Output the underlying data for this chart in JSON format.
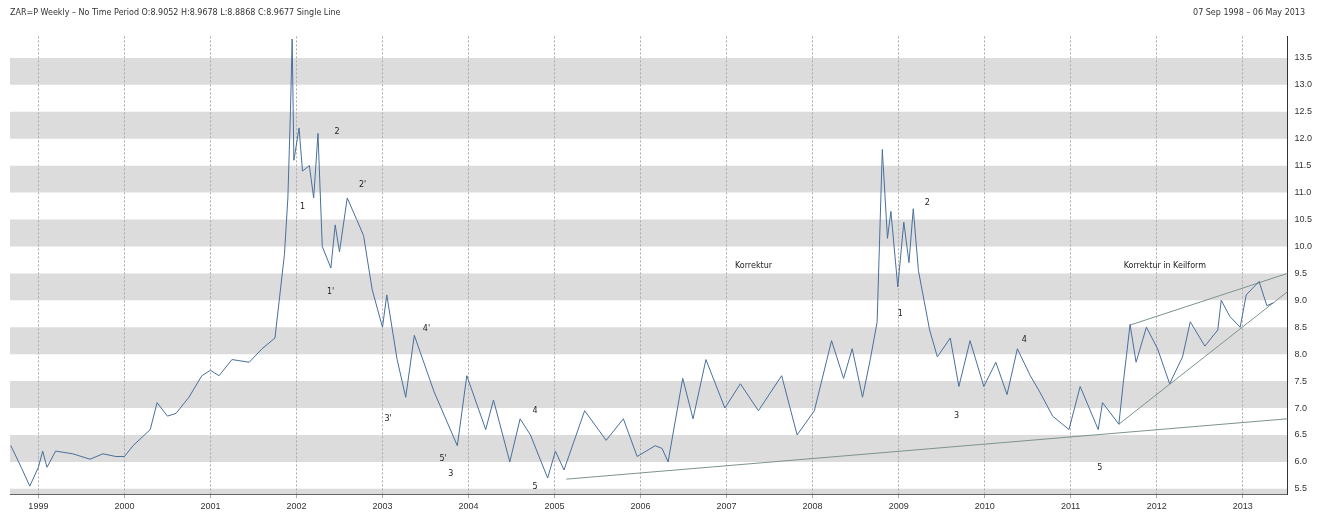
{
  "chart_data": {
    "type": "line",
    "title": "ZAR=P Weekly –  No Time Period O:8.9052 H:8.9678 L:8.8868 C:8.9677 Single Line",
    "subtitle": "07 Sep 1998  –  06 May 2013",
    "xlim": [
      1998.67,
      2013.52
    ],
    "xticks": [
      1999,
      2000,
      2001,
      2002,
      2003,
      2004,
      2005,
      2006,
      2007,
      2008,
      2009,
      2010,
      2011,
      2012,
      2013
    ],
    "ylim": [
      5.4,
      13.9
    ],
    "yticks": [
      5.5,
      {
        "value": 6,
        "label": "6.0"
      },
      6.5,
      {
        "value": 7,
        "label": "7.0"
      },
      7.5,
      {
        "value": 8,
        "label": "8.0"
      },
      8.5,
      {
        "value": 9,
        "label": "9.0"
      },
      9.5,
      {
        "value": 10,
        "label": "10.0"
      },
      10.5,
      {
        "value": 11,
        "label": "11.0"
      },
      11.5,
      {
        "value": 12,
        "label": "12.0"
      },
      12.5,
      {
        "value": 13,
        "label": "13.0"
      },
      13.5
    ],
    "grid": "x",
    "legend": false,
    "marker": "none",
    "line_style": "solid",
    "bands": [
      {
        "axis": "y",
        "from": 5.4,
        "to": 5.5,
        "color": "#dcdcdc"
      },
      {
        "axis": "y",
        "from": 6,
        "to": 6.5,
        "color": "#dcdcdc"
      },
      {
        "axis": "y",
        "from": 7,
        "to": 7.5,
        "color": "#dcdcdc"
      },
      {
        "axis": "y",
        "from": 8,
        "to": 8.5,
        "color": "#dcdcdc"
      },
      {
        "axis": "y",
        "from": 9,
        "to": 9.5,
        "color": "#dcdcdc"
      },
      {
        "axis": "y",
        "from": 10,
        "to": 10.5,
        "color": "#dcdcdc"
      },
      {
        "axis": "y",
        "from": 11,
        "to": 11.5,
        "color": "#dcdcdc"
      },
      {
        "axis": "y",
        "from": 12,
        "to": 12.5,
        "color": "#dcdcdc"
      },
      {
        "axis": "y",
        "from": 13,
        "to": 13.5,
        "color": "#dcdcdc"
      }
    ],
    "series": [
      {
        "color": "#4a6f9c",
        "x": [
          1998.68,
          1998.8,
          1998.9,
          1999.0,
          1999.05,
          1999.1,
          1999.2,
          1999.4,
          1999.6,
          1999.75,
          1999.9,
          2000.0,
          2000.1,
          2000.3,
          2000.38,
          2000.5,
          2000.6,
          2000.75,
          2000.9,
          2001.0,
          2001.1,
          2001.25,
          2001.45,
          2001.6,
          2001.75,
          2001.86,
          2001.9,
          2001.93,
          2001.95,
          2001.97,
          2002.03,
          2002.07,
          2002.15,
          2002.2,
          2002.25,
          2002.3,
          2002.4,
          2002.45,
          2002.5,
          2002.59,
          2002.7,
          2002.78,
          2002.88,
          2003.0,
          2003.05,
          2003.17,
          2003.27,
          2003.37,
          2003.6,
          2003.87,
          2003.98,
          2004.2,
          2004.29,
          2004.48,
          2004.6,
          2004.72,
          2004.92,
          2005.01,
          2005.11,
          2005.35,
          2005.6,
          2005.8,
          2005.96,
          2006.17,
          2006.25,
          2006.32,
          2006.49,
          2006.61,
          2006.76,
          2006.98,
          2007.16,
          2007.37,
          2007.64,
          2007.82,
          2008.02,
          2008.22,
          2008.36,
          2008.46,
          2008.58,
          2008.67,
          2008.75,
          2008.81,
          2008.87,
          2008.91,
          2008.99,
          2009.06,
          2009.12,
          2009.17,
          2009.23,
          2009.36,
          2009.45,
          2009.6,
          2009.7,
          2009.83,
          2009.99,
          2010.13,
          2010.26,
          2010.38,
          2010.53,
          2010.64,
          2010.79,
          2010.98,
          2011.11,
          2011.32,
          2011.37,
          2011.56,
          2011.61,
          2011.69,
          2011.76,
          2011.88,
          2012.01,
          2012.15,
          2012.3,
          2012.39,
          2012.56,
          2012.71,
          2012.75,
          2012.85,
          2012.97,
          2013.04,
          2013.19,
          2013.28,
          2013.35
        ],
        "values": [
          6.3,
          5.9,
          5.55,
          5.9,
          6.2,
          5.9,
          6.2,
          6.15,
          6.05,
          6.15,
          6.1,
          6.1,
          6.3,
          6.6,
          7.1,
          6.85,
          6.9,
          7.2,
          7.6,
          7.7,
          7.6,
          7.9,
          7.85,
          8.1,
          8.3,
          9.85,
          10.9,
          12.5,
          13.85,
          11.6,
          12.2,
          11.4,
          11.5,
          10.9,
          12.1,
          10.0,
          9.6,
          10.4,
          9.9,
          10.9,
          10.5,
          10.2,
          9.2,
          8.5,
          9.1,
          7.9,
          7.2,
          8.35,
          7.3,
          6.3,
          7.6,
          6.6,
          7.15,
          6.0,
          6.8,
          6.5,
          5.7,
          6.2,
          5.85,
          6.95,
          6.4,
          6.8,
          6.1,
          6.3,
          6.25,
          6.0,
          7.55,
          6.8,
          7.9,
          7.0,
          7.45,
          6.95,
          7.6,
          6.5,
          6.95,
          8.25,
          7.55,
          8.1,
          7.2,
          7.9,
          8.6,
          11.8,
          10.15,
          10.65,
          9.25,
          10.45,
          9.7,
          10.7,
          9.55,
          8.45,
          7.95,
          8.3,
          7.4,
          8.25,
          7.4,
          7.85,
          7.25,
          8.1,
          7.6,
          7.3,
          6.85,
          6.6,
          7.4,
          6.6,
          7.1,
          6.7,
          7.45,
          8.55,
          7.85,
          8.5,
          8.1,
          7.45,
          7.95,
          8.6,
          8.15,
          8.45,
          9.0,
          8.7,
          8.5,
          9.1,
          9.35,
          8.9,
          8.95
        ]
      },
      {
        "color": "#7d9488",
        "x": [
          2005.14,
          2013.52
        ],
        "values": [
          5.68,
          6.8
        ]
      },
      {
        "color": "#7d9488",
        "x": [
          2011.69,
          2013.52
        ],
        "values": [
          8.54,
          9.5
        ]
      },
      {
        "color": "#7d9488",
        "x": [
          2011.56,
          2013.52
        ],
        "values": [
          6.7,
          9.16
        ]
      }
    ],
    "annotations": [
      "2",
      "1",
      "2'",
      "1'",
      "4'",
      "3'",
      "5'",
      "3",
      "4",
      "5",
      "Korrektur",
      "1",
      "2",
      "4",
      "3",
      "5",
      "Korrektur in Keilform"
    ]
  }
}
